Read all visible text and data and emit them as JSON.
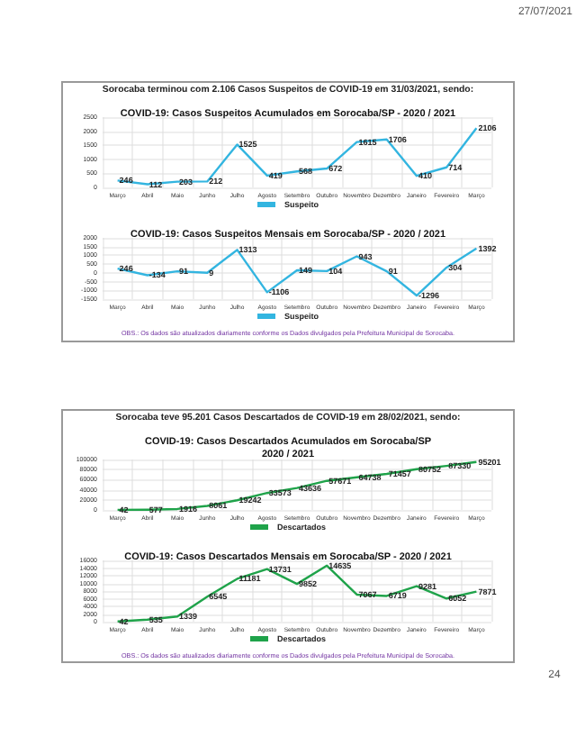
{
  "chart_data": [
    {
      "type": "line",
      "title": "COVID-19: Casos Suspeitos Acumulados em Sorocaba/SP - 2020 / 2021",
      "annotations": [
        "27/07/2021",
        "Sorocaba terminou com 2.106 Casos Suspeitos de COVID-19 em 31/03/2021, sendo:"
      ],
      "categories": [
        "Março",
        "Abril",
        "Maio",
        "Junho",
        "Julho",
        "Agosto",
        "Setembro",
        "Outubro",
        "Novembro",
        "Dezembro",
        "Janeiro",
        "Fevereiro",
        "Março"
      ],
      "series": [
        {
          "name": "Suspeito",
          "color": "#33b5e0",
          "values": [
            246,
            112,
            203,
            212,
            1525,
            419,
            568,
            672,
            1615,
            1706,
            410,
            714,
            2106
          ]
        }
      ],
      "ylim": [
        0,
        2500
      ],
      "yticks": [
        0,
        500,
        1000,
        1500,
        2000,
        2500
      ],
      "grid": true,
      "legend": "bottom",
      "marker": "none",
      "data_labels": true
    },
    {
      "type": "line",
      "title": "COVID-19: Casos Suspeitos Mensais em Sorocaba/SP - 2020 / 2021",
      "annotations": [
        "OBS.: Os dados são atualizados diariamente conforme os Dados divulgados pela Prefeitura Municipal de Sorocaba."
      ],
      "categories": [
        "Março",
        "Abril",
        "Maio",
        "Junho",
        "Julho",
        "Agosto",
        "Setembro",
        "Outubro",
        "Novembro",
        "Dezembro",
        "Janeiro",
        "Fevereiro",
        "Março"
      ],
      "series": [
        {
          "name": "Suspeito",
          "color": "#33b5e0",
          "values": [
            246,
            -134,
            91,
            9,
            1313,
            -1106,
            149,
            104,
            943,
            91,
            -1296,
            304,
            1392
          ]
        }
      ],
      "ylim": [
        -1500,
        2000
      ],
      "yticks": [
        -1500,
        -1000,
        -500,
        0,
        500,
        1000,
        1500,
        2000
      ],
      "grid": true,
      "legend": "bottom",
      "marker": "none",
      "data_labels": true
    },
    {
      "type": "line",
      "title": "COVID-19: Casos Descartados Acumulados em Sorocaba/SP\n2020 / 2021",
      "annotations": [
        "Sorocaba teve 95.201 Casos Descartados de COVID-19 em 28/02/2021, sendo:"
      ],
      "categories": [
        "Março",
        "Abril",
        "Maio",
        "Junho",
        "Julho",
        "Agosto",
        "Setembro",
        "Outubro",
        "Novembro",
        "Dezembro",
        "Janeiro",
        "Fevereiro",
        "Março"
      ],
      "series": [
        {
          "name": "Descartados",
          "color": "#1fa34a",
          "values": [
            42,
            577,
            1916,
            8061,
            19242,
            33573,
            43636,
            57671,
            64738,
            71457,
            80752,
            87330,
            95201
          ]
        }
      ],
      "ylim": [
        0,
        100000
      ],
      "yticks": [
        0,
        20000,
        40000,
        60000,
        80000,
        100000
      ],
      "grid": true,
      "legend": "bottom",
      "marker": "none",
      "data_labels": true
    },
    {
      "type": "line",
      "title": "COVID-19: Casos Descartados Mensais em Sorocaba/SP - 2020 / 2021",
      "annotations": [
        "OBS.: Os dados são atualizados diariamente conforme os Dados divulgados pela Prefeitura Municipal de Sorocaba.",
        "24"
      ],
      "categories": [
        "Março",
        "Abril",
        "Maio",
        "Junho",
        "Julho",
        "Agosto",
        "Setembro",
        "Outubro",
        "Novembro",
        "Dezembro",
        "Janeiro",
        "Fevereiro",
        "Março"
      ],
      "series": [
        {
          "name": "Descartados",
          "color": "#1fa34a",
          "values": [
            42,
            535,
            1339,
            6545,
            11181,
            13731,
            9852,
            14635,
            7067,
            6719,
            9281,
            6052,
            7871
          ]
        }
      ],
      "ylim": [
        0,
        16000
      ],
      "yticks": [
        0,
        2000,
        4000,
        6000,
        8000,
        10000,
        12000,
        14000,
        16000
      ],
      "grid": true,
      "legend": "bottom",
      "marker": "none",
      "data_labels": true
    }
  ]
}
